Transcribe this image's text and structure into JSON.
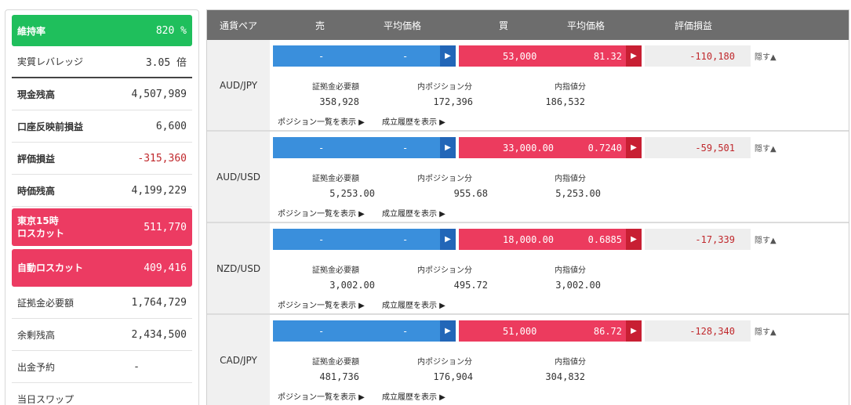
{
  "summary": {
    "rows": [
      {
        "label": "維持率",
        "value": "820 %"
      },
      {
        "label": "実質レバレッジ",
        "value": "3.05 倍"
      },
      {
        "label": "現金残高",
        "value": "4,507,989"
      },
      {
        "label": "口座反映前損益",
        "value": "6,600"
      },
      {
        "label": "評価損益",
        "value": "-315,360"
      },
      {
        "label": "時価残高",
        "value": "4,199,229"
      },
      {
        "label_line1": "東京15時",
        "label_line2": "ロスカット",
        "value": "511,770"
      },
      {
        "label": "自動ロスカット",
        "value": "409,416"
      },
      {
        "label": "証拠金必要額",
        "value": "1,764,729"
      },
      {
        "label": "余剰残高",
        "value": "2,434,500"
      },
      {
        "label": "出金予約",
        "value": "-"
      },
      {
        "label": "当日スワップ",
        "value": ""
      }
    ]
  },
  "table": {
    "headers": {
      "pair": "通貨ペア",
      "sell": "売",
      "sell_avg": "平均価格",
      "buy": "買",
      "buy_avg": "平均価格",
      "pl": "評価損益"
    },
    "sub_labels": {
      "margin": "証拠金必要額",
      "position": "内ポジション分",
      "limit": "内指値分"
    },
    "links": {
      "positions": "ポジション一覧を表示 ▶",
      "history": "成立履歴を表示 ▶"
    },
    "hide_label": "隠す▲",
    "pairs": [
      {
        "name": "AUD/JPY",
        "sell_qty": "-",
        "sell_avg": "-",
        "buy_qty": "53,000",
        "buy_avg": "81.32",
        "pl": "-110,180",
        "margin": "358,928",
        "position": "172,396",
        "limit": "186,532"
      },
      {
        "name": "AUD/USD",
        "sell_qty": "-",
        "sell_avg": "-",
        "buy_qty": "33,000.00",
        "buy_avg": "0.7240",
        "pl": "-59,501",
        "margin": "5,253.00",
        "position": "955.68",
        "limit": "5,253.00"
      },
      {
        "name": "NZD/USD",
        "sell_qty": "-",
        "sell_avg": "-",
        "buy_qty": "18,000.00",
        "buy_avg": "0.6885",
        "pl": "-17,339",
        "margin": "3,002.00",
        "position": "495.72",
        "limit": "3,002.00"
      },
      {
        "name": "CAD/JPY",
        "sell_qty": "-",
        "sell_avg": "-",
        "buy_qty": "51,000",
        "buy_avg": "86.72",
        "pl": "-128,340",
        "margin": "481,736",
        "position": "176,904",
        "limit": "304,832"
      }
    ]
  },
  "colors": {
    "green": "#1fbf5c",
    "pink": "#ec3b62",
    "sell_blue": "#3a8fdc",
    "buy_red": "#ec3b5e",
    "negative": "#c0282c",
    "header_gray": "#6d6d6d"
  },
  "icons": {
    "play_arrow": "play-arrow-icon"
  }
}
